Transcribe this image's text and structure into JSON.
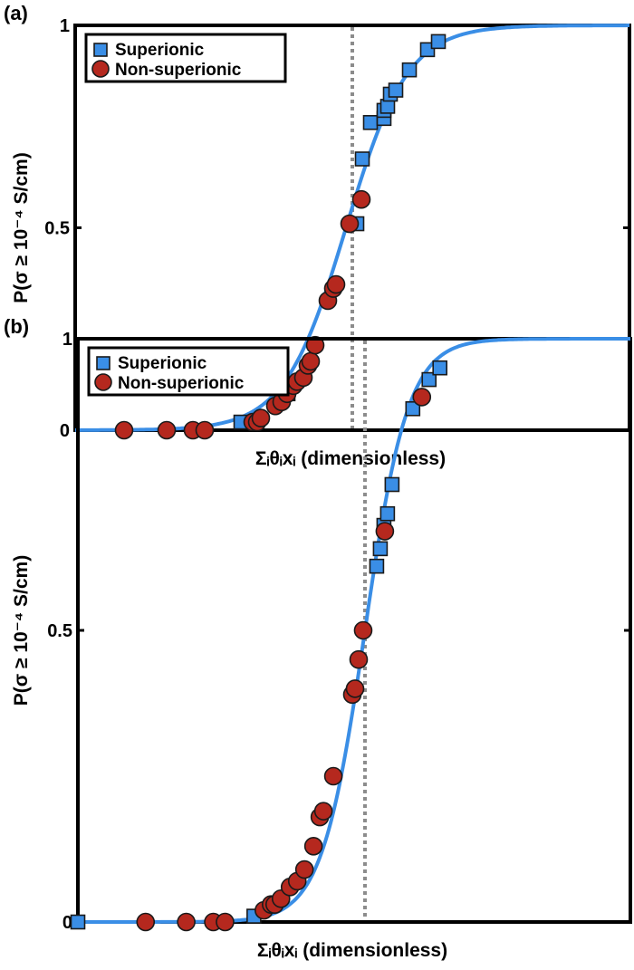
{
  "colors": {
    "curve": "#3a8ee6",
    "superionic_fill": "#3a8ee6",
    "nonsuperionic_fill": "#b5281e",
    "threshold_line": "#8c8c8c",
    "frame": "#000000"
  },
  "chart_data": [
    {
      "type": "scatter",
      "panel_label": "(a)",
      "xlabel": "Σᵢθᵢxᵢ  (dimensionless)",
      "ylabel": "P(σ ≥ 10⁻⁴ S/cm)",
      "xlim": [
        0,
        612
      ],
      "ylim": [
        0,
        1
      ],
      "y_ticks": [
        0,
        0.5,
        1
      ],
      "y_tick_labels": [
        "0",
        "0.5",
        "1"
      ],
      "threshold_x": 306,
      "grid": false,
      "legend_position": "top-left",
      "fit_curve": {
        "type": "logistic",
        "midpoint": 299,
        "scale": 34
      },
      "series": [
        {
          "name": "Superionic",
          "marker": "square",
          "x": [
            183,
            235,
            311,
            317,
            326,
            341,
            341,
            345,
            348,
            354,
            369,
            389,
            401
          ],
          "y": [
            0.02,
            0.09,
            0.51,
            0.67,
            0.76,
            0.77,
            0.79,
            0.8,
            0.83,
            0.84,
            0.89,
            0.94,
            0.96
          ]
        },
        {
          "name": "Non-superionic",
          "marker": "circle",
          "x": [
            54,
            101,
            130,
            143,
            196,
            201,
            205,
            221,
            228,
            234,
            241,
            245,
            252,
            257,
            260,
            265,
            279,
            285,
            288,
            303,
            316
          ],
          "y": [
            0.0,
            0.0,
            0.0,
            0.0,
            0.02,
            0.02,
            0.03,
            0.06,
            0.07,
            0.09,
            0.11,
            0.12,
            0.13,
            0.16,
            0.17,
            0.21,
            0.32,
            0.35,
            0.36,
            0.51,
            0.57
          ]
        }
      ]
    },
    {
      "type": "scatter",
      "panel_label": "(b)",
      "xlabel": "Σᵢθᵢxᵢ  (dimensionless)",
      "ylabel": "P(σ ≥ 10⁻⁴ S/cm)",
      "xlim": [
        0,
        612
      ],
      "ylim": [
        0,
        1
      ],
      "y_ticks": [
        0,
        0.5,
        1
      ],
      "y_tick_labels": [
        "0",
        "0.5",
        "1"
      ],
      "threshold_x": 318,
      "grid": false,
      "legend_position": "top-left",
      "fit_curve": {
        "type": "logistic",
        "midpoint": 318,
        "scale": 24
      },
      "series": [
        {
          "name": "Superionic",
          "marker": "square",
          "x": [
            0,
            195,
            331,
            335,
            339,
            343,
            348,
            371,
            389,
            401
          ],
          "y": [
            0.0,
            0.01,
            0.61,
            0.64,
            0.68,
            0.7,
            0.75,
            0.88,
            0.93,
            0.95
          ]
        },
        {
          "name": "Non-superionic",
          "marker": "circle",
          "x": [
            75,
            120,
            150,
            163,
            206,
            214,
            218,
            225,
            235,
            243,
            251,
            261,
            268,
            272,
            283,
            304,
            307,
            311,
            316,
            340,
            381
          ],
          "y": [
            0.0,
            0.0,
            0.0,
            0.0,
            0.02,
            0.03,
            0.03,
            0.04,
            0.06,
            0.07,
            0.09,
            0.13,
            0.18,
            0.19,
            0.25,
            0.39,
            0.4,
            0.45,
            0.5,
            0.67,
            0.9
          ]
        }
      ]
    }
  ]
}
